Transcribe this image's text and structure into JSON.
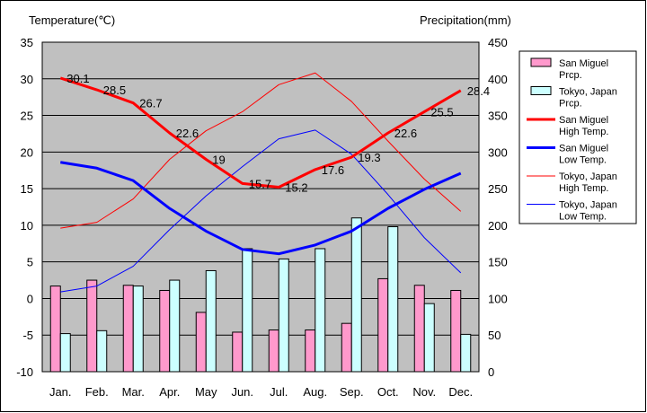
{
  "chart_data": {
    "type": "bar+line",
    "categories": [
      "Jan.",
      "Feb.",
      "Mar.",
      "Apr.",
      "May",
      "Jun.",
      "Jul.",
      "Aug.",
      "Sep.",
      "Oct.",
      "Nov.",
      "Dec."
    ],
    "left_axis": {
      "title": "Temperature(℃)",
      "ylim": [
        -10,
        35
      ],
      "ticks": [
        35,
        30,
        25,
        20,
        15,
        10,
        5,
        0,
        -5,
        -10
      ]
    },
    "right_axis": {
      "title": "Precipitation(mm)",
      "ylim": [
        0,
        450
      ],
      "ticks": [
        450,
        400,
        350,
        300,
        250,
        200,
        150,
        100,
        50,
        0
      ]
    },
    "grid": true,
    "legend_position": "right",
    "bar_series": [
      {
        "name": "San Miguel Prcp.",
        "legend_lines": [
          "San Miguel",
          "Prcp."
        ],
        "color": "#ff99cc",
        "values": [
          117,
          125,
          118,
          111,
          81,
          54,
          57,
          57,
          66,
          127,
          118,
          111
        ]
      },
      {
        "name": "Tokyo, Japan Prcp.",
        "legend_lines": [
          "Tokyo, Japan",
          "Prcp."
        ],
        "color": "#ccffff",
        "values": [
          52,
          56,
          117,
          125,
          138,
          168,
          154,
          168,
          210,
          198,
          93,
          51
        ]
      }
    ],
    "line_series": [
      {
        "name": "San Miguel High Temp.",
        "legend_lines": [
          "San Miguel",
          "High Temp."
        ],
        "color": "#ff0000",
        "width": 3,
        "values": [
          30.1,
          28.5,
          26.7,
          22.6,
          19,
          15.7,
          15.2,
          17.6,
          19.3,
          22.6,
          25.5,
          28.4
        ],
        "labels": [
          "30.1",
          "28.5",
          "26.7",
          "22.6",
          "19",
          "15.7",
          "15.2",
          "17.6",
          "19.3",
          "22.6",
          "25.5",
          "28.4"
        ]
      },
      {
        "name": "San Miguel Low Temp.",
        "legend_lines": [
          "San Miguel",
          "Low Temp."
        ],
        "color": "#0000ff",
        "width": 3,
        "values": [
          18.6,
          17.8,
          16.1,
          12.3,
          9.2,
          6.7,
          6.1,
          7.3,
          9.2,
          12.3,
          14.9,
          17.1
        ]
      },
      {
        "name": "Tokyo, Japan High Temp.",
        "legend_lines": [
          "Tokyo, Japan",
          "High Temp."
        ],
        "color": "#ff0000",
        "width": 1,
        "values": [
          9.6,
          10.4,
          13.6,
          19.0,
          22.9,
          25.5,
          29.2,
          30.8,
          26.9,
          21.5,
          16.3,
          11.9
        ]
      },
      {
        "name": "Tokyo, Japan Low Temp.",
        "legend_lines": [
          "Tokyo, Japan",
          "Low Temp."
        ],
        "color": "#0000ff",
        "width": 1,
        "values": [
          0.9,
          1.7,
          4.4,
          9.4,
          14.0,
          18.0,
          21.8,
          23.0,
          19.7,
          14.2,
          8.3,
          3.5
        ]
      }
    ]
  }
}
